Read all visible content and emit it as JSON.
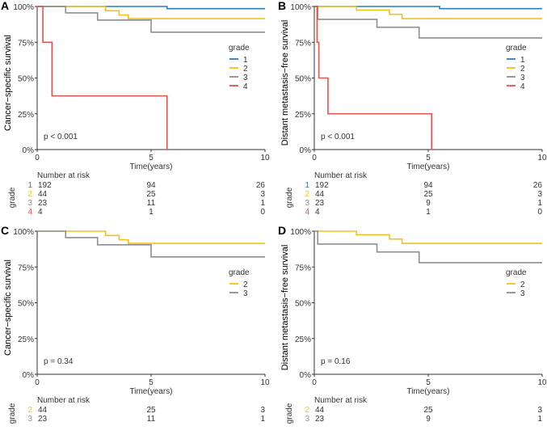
{
  "colors": {
    "1": "#2B7BC1",
    "2": "#F2C218",
    "3": "#8E8E8E",
    "4": "#E05450"
  },
  "chart_data": [
    {
      "type": "line",
      "panel_label": "A",
      "ylabel": "Cancer−specific survival",
      "xlabel": "Time(years)",
      "xlim": [
        0,
        10
      ],
      "ylim": [
        0,
        1
      ],
      "xticks": [
        "0",
        "5",
        "10"
      ],
      "yticks": [
        "0%",
        "25%",
        "50%",
        "75%",
        "100%"
      ],
      "legend_title": "grade",
      "legend_position": "right",
      "p_value": "p < 0.001",
      "series": [
        {
          "name": "1",
          "steps": [
            [
              0,
              1
            ],
            [
              5.7,
              0.985
            ]
          ],
          "end": 10
        },
        {
          "name": "2",
          "steps": [
            [
              0,
              1
            ],
            [
              3.0,
              0.97
            ],
            [
              3.6,
              0.94
            ],
            [
              4.0,
              0.915
            ]
          ],
          "end": 10
        },
        {
          "name": "3",
          "steps": [
            [
              0,
              1
            ],
            [
              1.25,
              0.955
            ],
            [
              2.65,
              0.905
            ],
            [
              5.0,
              0.82
            ]
          ],
          "end": 10
        },
        {
          "name": "4",
          "steps": [
            [
              0,
              1
            ],
            [
              0.25,
              0.75
            ],
            [
              0.65,
              0.375
            ],
            [
              5.7,
              0
            ]
          ],
          "end": 5.7
        }
      ],
      "risk_table": {
        "title": "Number at risk",
        "row_label": "grade",
        "rows": [
          {
            "name": "1",
            "values": [
              "192",
              "94",
              "26"
            ]
          },
          {
            "name": "2",
            "values": [
              "44",
              "25",
              "3"
            ]
          },
          {
            "name": "3",
            "values": [
              "23",
              "11",
              "1"
            ]
          },
          {
            "name": "4",
            "values": [
              "4",
              "1",
              "0"
            ]
          }
        ]
      }
    },
    {
      "type": "line",
      "panel_label": "B",
      "ylabel": "Distant metastasis−free survival",
      "xlabel": "Time(years)",
      "xlim": [
        0,
        10
      ],
      "ylim": [
        0,
        1
      ],
      "xticks": [
        "0",
        "5",
        "10"
      ],
      "yticks": [
        "0%",
        "25%",
        "50%",
        "75%",
        "100%"
      ],
      "legend_title": "grade",
      "legend_position": "right",
      "p_value": "p < 0.001",
      "series": [
        {
          "name": "1",
          "steps": [
            [
              0,
              1
            ],
            [
              5.5,
              0.985
            ]
          ],
          "end": 10
        },
        {
          "name": "2",
          "steps": [
            [
              0,
              1
            ],
            [
              1.85,
              0.975
            ],
            [
              3.3,
              0.945
            ],
            [
              3.85,
              0.915
            ]
          ],
          "end": 10
        },
        {
          "name": "3",
          "steps": [
            [
              0,
              1
            ],
            [
              0.15,
              0.91
            ],
            [
              2.75,
              0.855
            ],
            [
              4.6,
              0.78
            ]
          ],
          "end": 10
        },
        {
          "name": "4",
          "steps": [
            [
              0,
              1
            ],
            [
              0.12,
              0.75
            ],
            [
              0.2,
              0.5
            ],
            [
              0.6,
              0.25
            ],
            [
              5.15,
              0
            ]
          ],
          "end": 5.15
        }
      ],
      "risk_table": {
        "title": "Number at risk",
        "row_label": "grade",
        "rows": [
          {
            "name": "1",
            "values": [
              "192",
              "94",
              "26"
            ]
          },
          {
            "name": "2",
            "values": [
              "44",
              "25",
              "3"
            ]
          },
          {
            "name": "3",
            "values": [
              "23",
              "9",
              "1"
            ]
          },
          {
            "name": "4",
            "values": [
              "4",
              "1",
              "0"
            ]
          }
        ]
      }
    },
    {
      "type": "line",
      "panel_label": "C",
      "ylabel": "Cancer−specific survival",
      "xlabel": "Time(years)",
      "xlim": [
        0,
        10
      ],
      "ylim": [
        0,
        1
      ],
      "xticks": [
        "0",
        "5",
        "10"
      ],
      "yticks": [
        "0%",
        "25%",
        "50%",
        "75%",
        "100%"
      ],
      "legend_title": "grade",
      "legend_position": "right",
      "p_value": "p = 0.34",
      "series": [
        {
          "name": "2",
          "steps": [
            [
              0,
              1
            ],
            [
              3.0,
              0.97
            ],
            [
              3.6,
              0.94
            ],
            [
              4.0,
              0.915
            ]
          ],
          "end": 10
        },
        {
          "name": "3",
          "steps": [
            [
              0,
              1
            ],
            [
              1.25,
              0.955
            ],
            [
              2.65,
              0.905
            ],
            [
              5.0,
              0.82
            ]
          ],
          "end": 10
        }
      ],
      "risk_table": {
        "title": "Number at risk",
        "row_label": "grade",
        "rows": [
          {
            "name": "2",
            "values": [
              "44",
              "25",
              "3"
            ]
          },
          {
            "name": "3",
            "values": [
              "23",
              "11",
              "1"
            ]
          }
        ]
      }
    },
    {
      "type": "line",
      "panel_label": "D",
      "ylabel": "Distant metastasis−free survival",
      "xlabel": "Time(years)",
      "xlim": [
        0,
        10
      ],
      "ylim": [
        0,
        1
      ],
      "xticks": [
        "0",
        "5",
        "10"
      ],
      "yticks": [
        "0%",
        "25%",
        "50%",
        "75%",
        "100%"
      ],
      "legend_title": "grade",
      "legend_position": "right",
      "p_value": "p = 0.16",
      "series": [
        {
          "name": "2",
          "steps": [
            [
              0,
              1
            ],
            [
              1.85,
              0.975
            ],
            [
              3.3,
              0.945
            ],
            [
              3.85,
              0.915
            ]
          ],
          "end": 10
        },
        {
          "name": "3",
          "steps": [
            [
              0,
              1
            ],
            [
              0.15,
              0.91
            ],
            [
              2.75,
              0.855
            ],
            [
              4.6,
              0.78
            ]
          ],
          "end": 10
        }
      ],
      "risk_table": {
        "title": "Number at risk",
        "row_label": "grade",
        "rows": [
          {
            "name": "2",
            "values": [
              "44",
              "25",
              "3"
            ]
          },
          {
            "name": "3",
            "values": [
              "23",
              "9",
              "1"
            ]
          }
        ]
      }
    }
  ]
}
